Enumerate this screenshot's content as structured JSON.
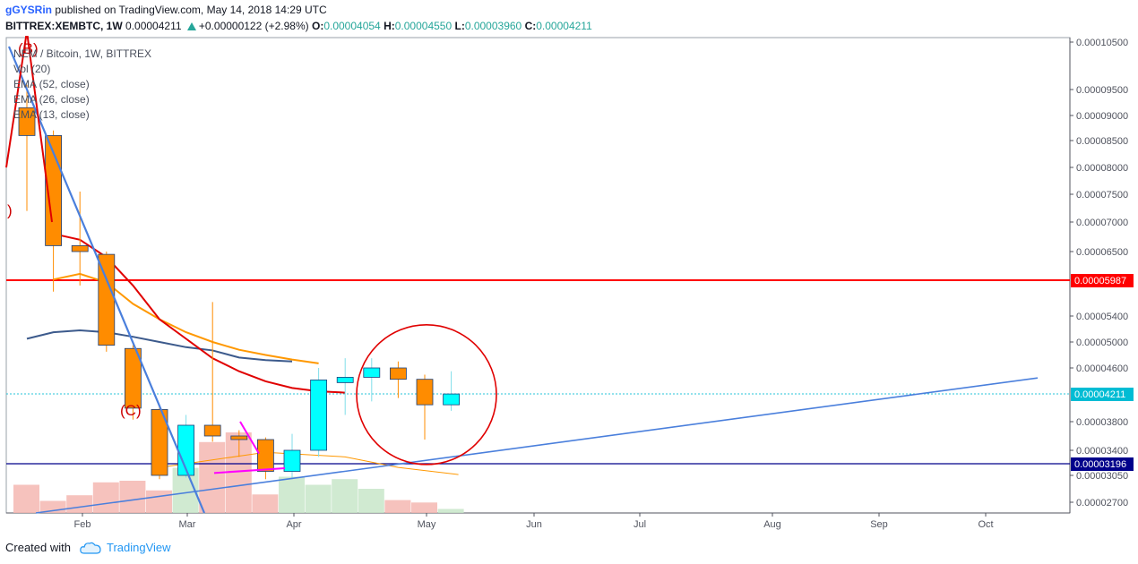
{
  "header": {
    "author": "gGYSRin",
    "published": "published on TradingView.com, May 14, 2018 14:29 UTC",
    "symbol": "BITTREX:XEMBTC, 1W",
    "last": "0.00004211",
    "change": "+0.00000122 (+2.98%)",
    "o_label": "O:",
    "o_value": "0.00004054",
    "h_label": "H:",
    "h_value": "0.00004550",
    "l_label": "L:",
    "l_value": "0.00003960",
    "c_label": "C:",
    "c_value": "0.00004211"
  },
  "legend": {
    "title": "NEM / Bitcoin, 1W, BITTREX",
    "items": [
      "Vol (20)",
      "EMA (52, close)",
      "EMA (26, close)",
      "EMA (13, close)"
    ]
  },
  "footer": {
    "created_with": "Created with",
    "brand": "TradingView"
  },
  "colors": {
    "up": "#00ffff",
    "down": "#ff8c00",
    "candle_border": "#1a3f7a",
    "ema52": "#3c5a8c",
    "ema26": "#ff9800",
    "ema13": "#e00000",
    "resistance": "#ff0000",
    "support": "#00008b",
    "trendline": "#4a7fdc",
    "vol_up": "#c8e6c9",
    "vol_down": "#f5b7b1",
    "annotation": "#cc0000",
    "pink": "#ff00ff"
  },
  "chart_data": {
    "type": "candlestick",
    "y_axis_labels": [
      "0.00010500",
      "0.00009500",
      "0.00009000",
      "0.00008500",
      "0.00008000",
      "0.00007500",
      "0.00007000",
      "0.00006500",
      "0.00005400",
      "0.00005000",
      "0.00004600",
      "0.00003800",
      "0.00003400",
      "0.00003050",
      "0.00002700"
    ],
    "x_axis_labels": [
      "Feb",
      "Mar",
      "Apr",
      "May",
      "Jun",
      "Jul",
      "Aug",
      "Sep",
      "Oct"
    ],
    "candles": [
      {
        "o": 9.15e-05,
        "h": 9.6e-05,
        "l": 7.2e-05,
        "c": 8.6e-05,
        "dir": "down"
      },
      {
        "o": 8.6e-05,
        "h": 8.7e-05,
        "l": 5.8e-05,
        "c": 6.6e-05,
        "dir": "down"
      },
      {
        "o": 6.6e-05,
        "h": 7.55e-05,
        "l": 5.9e-05,
        "c": 6.5e-05,
        "dir": "down"
      },
      {
        "o": 6.45e-05,
        "h": 6.5e-05,
        "l": 4.85e-05,
        "c": 4.95e-05,
        "dir": "down"
      },
      {
        "o": 4.9e-05,
        "h": 4.95e-05,
        "l": 3.83e-05,
        "c": 4e-05,
        "dir": "down"
      },
      {
        "o": 3.98e-05,
        "h": 4.05e-05,
        "l": 3e-05,
        "c": 3.05e-05,
        "dir": "down"
      },
      {
        "o": 3.05e-05,
        "h": 3.9e-05,
        "l": 3.02e-05,
        "c": 3.75e-05,
        "dir": "up"
      },
      {
        "o": 3.75e-05,
        "h": 5.63e-05,
        "l": 3.52e-05,
        "c": 3.6e-05,
        "dir": "down"
      },
      {
        "o": 3.6e-05,
        "h": 3.68e-05,
        "l": 3.3e-05,
        "c": 3.55e-05,
        "dir": "down"
      },
      {
        "o": 3.55e-05,
        "h": 3.58e-05,
        "l": 3e-05,
        "c": 3.1e-05,
        "dir": "down"
      },
      {
        "o": 3.1e-05,
        "h": 3.63e-05,
        "l": 3e-05,
        "c": 3.4e-05,
        "dir": "up"
      },
      {
        "o": 3.4e-05,
        "h": 4.6e-05,
        "l": 3.3e-05,
        "c": 4.42e-05,
        "dir": "up"
      },
      {
        "o": 4.38e-05,
        "h": 4.75e-05,
        "l": 3.9e-05,
        "c": 4.46e-05,
        "dir": "up"
      },
      {
        "o": 4.46e-05,
        "h": 4.75e-05,
        "l": 4.1e-05,
        "c": 4.6e-05,
        "dir": "up"
      },
      {
        "o": 4.6e-05,
        "h": 4.7e-05,
        "l": 4.15e-05,
        "c": 4.43e-05,
        "dir": "down"
      },
      {
        "o": 4.43e-05,
        "h": 4.5e-05,
        "l": 3.55e-05,
        "c": 4.05e-05,
        "dir": "down"
      },
      {
        "o": 4.05e-05,
        "h": 4.55e-05,
        "l": 3.96e-05,
        "c": 4.21e-05,
        "dir": "up"
      }
    ],
    "volumes": [
      0.35,
      0.15,
      0.22,
      0.38,
      0.4,
      0.28,
      0.56,
      0.88,
      1.0,
      0.23,
      0.45,
      0.35,
      0.42,
      0.3,
      0.16,
      0.13,
      0.05
    ],
    "ema13": [
      6.8e-05,
      6.7e-05,
      6.4e-05,
      5.9e-05,
      5.35e-05,
      5.05e-05,
      4.75e-05,
      4.55e-05,
      4.4e-05,
      4.3e-05,
      4.25e-05,
      4.23e-05
    ],
    "ema26": [
      6e-05,
      6.1e-05,
      5.95e-05,
      5.6e-05,
      5.35e-05,
      5.15e-05,
      5e-05,
      4.88e-05,
      4.8e-05,
      4.73e-05,
      4.67e-05
    ],
    "ema52": [
      5.05e-05,
      5.15e-05,
      5.18e-05,
      5.15e-05,
      5.08e-05,
      5e-05,
      4.92e-05,
      4.87e-05,
      4.76e-05,
      4.72e-05,
      4.7e-05
    ],
    "resistance_level": "0.00005987",
    "support_level": "0.00003196",
    "current_price": "0.00004211",
    "annotations": [
      "(B)",
      "(C)",
      ")"
    ]
  }
}
